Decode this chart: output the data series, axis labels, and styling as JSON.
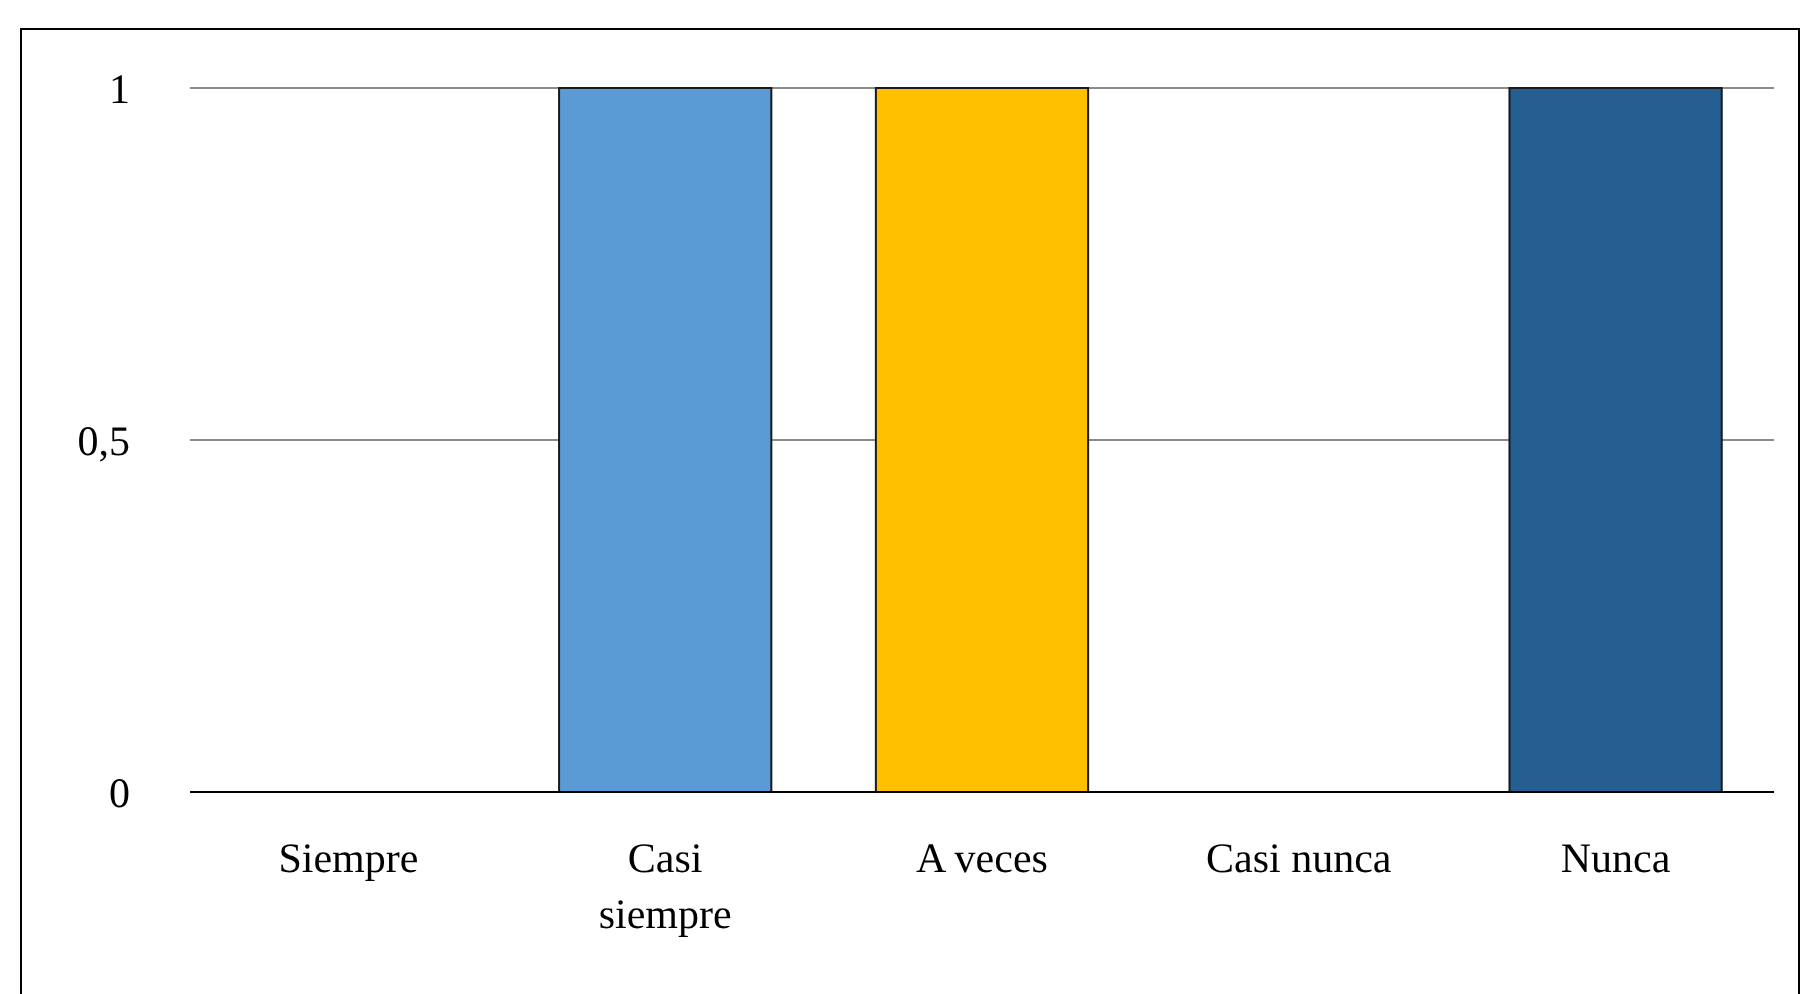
{
  "chart_data": {
    "type": "bar",
    "categories": [
      "Siempre",
      "Casi siempre",
      "A veces",
      "Casi nunca",
      "Nunca"
    ],
    "values": [
      0,
      1,
      1,
      0,
      1
    ],
    "colors": [
      "#5b9bd5",
      "#5b9bd5",
      "#ffc000",
      "#a5a5a5",
      "#255e91"
    ],
    "ylim": [
      0,
      1
    ],
    "yticks": [
      0,
      {
        "value": 0.5,
        "label": "0,5"
      },
      1
    ],
    "grid": "y"
  }
}
